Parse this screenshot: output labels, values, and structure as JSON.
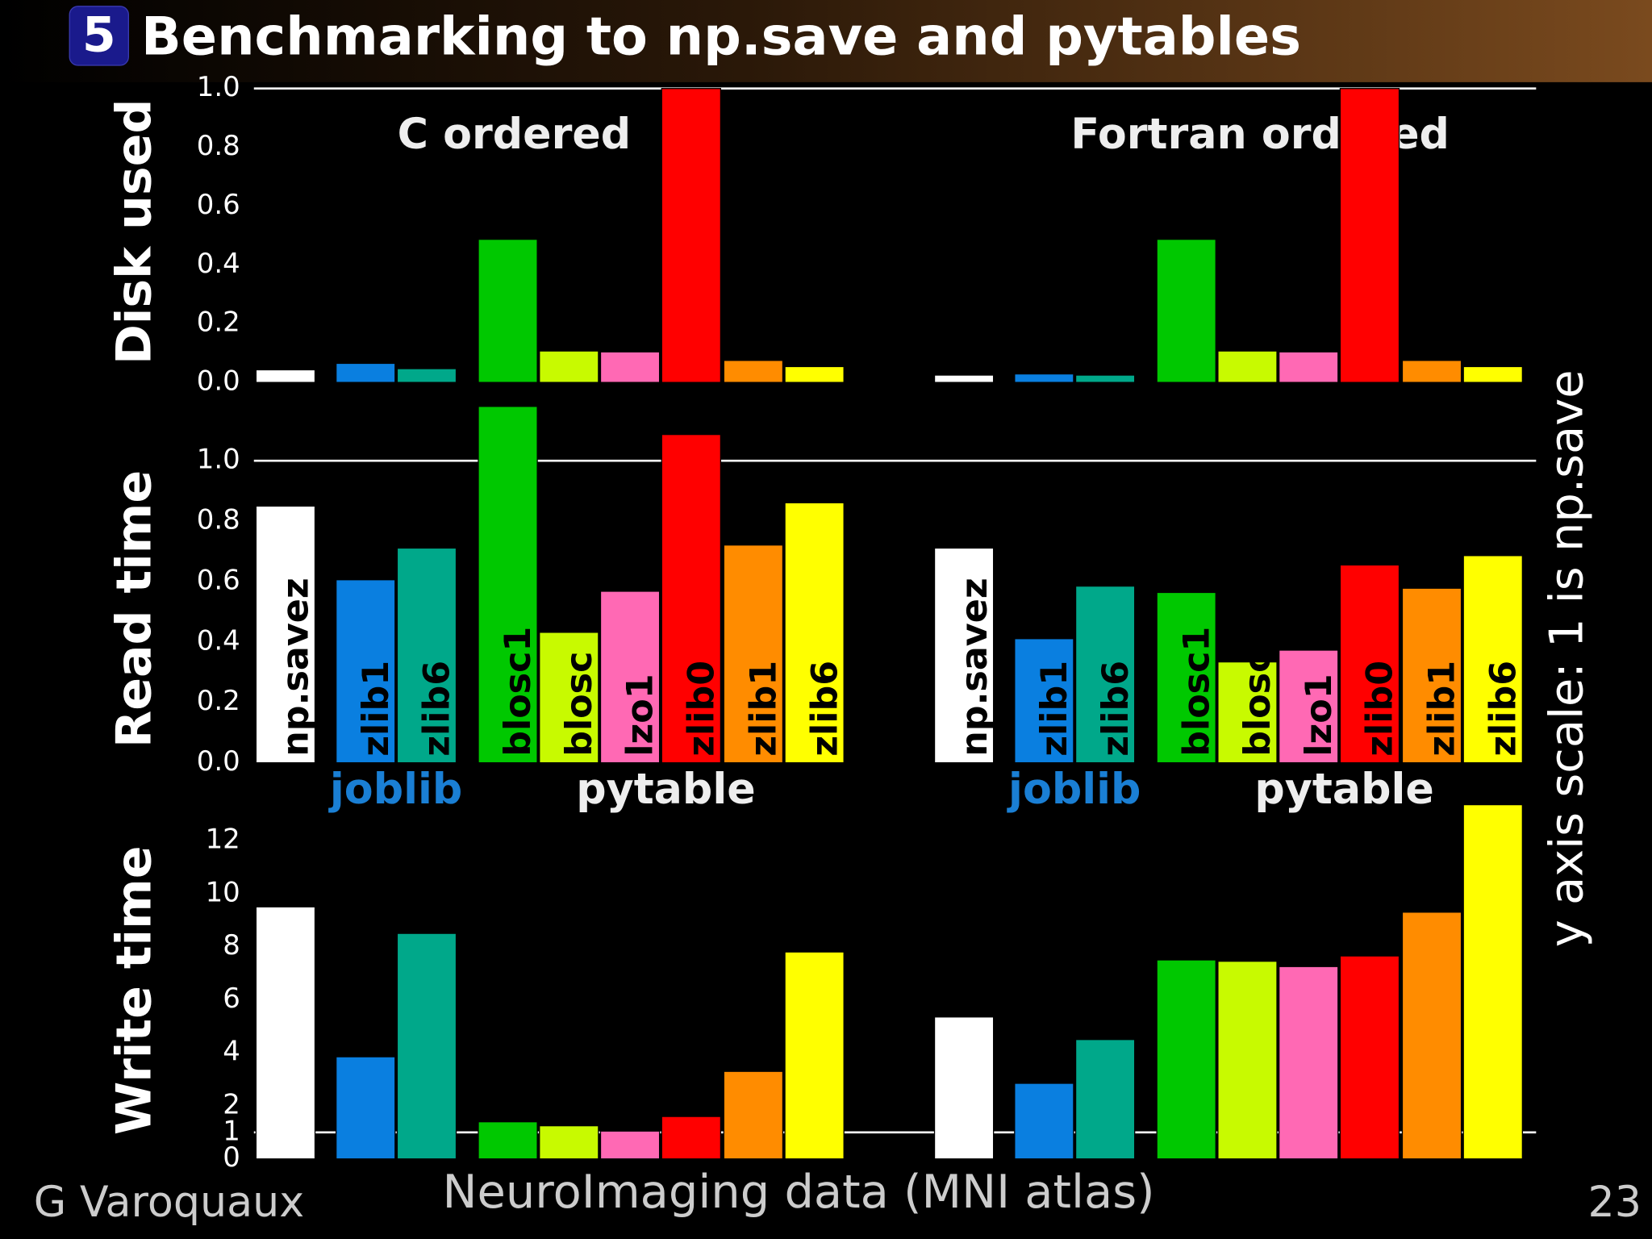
{
  "header": {
    "number": "5",
    "title": "Benchmarking to np.save and pytables"
  },
  "footer": {
    "author": "G Varoquaux",
    "subtitle": "NeuroImaging data (MNI atlas)",
    "page": "23"
  },
  "y_note": "y axis scale: 1 is np.save",
  "colors": [
    "#ffffff",
    "#0a7fe0",
    "#00a88a",
    "#00c800",
    "#c8fa00",
    "#ff69b4",
    "#ff0000",
    "#ff8c00",
    "#ffff00"
  ],
  "chart_data": [
    {
      "type": "bar",
      "y_label": "Disk used",
      "ylim": [
        0,
        1
      ],
      "yticks": [
        {
          "value": 0,
          "label": "0.0"
        },
        0.2,
        0.4,
        0.6,
        0.8,
        {
          "value": 1,
          "label": "1.0"
        }
      ],
      "hline": 1,
      "series": [
        {
          "name": "C ordered",
          "values": [
            0.043,
            0.065,
            0.047,
            0.487,
            0.107,
            0.104,
            1.0,
            0.075,
            0.054
          ]
        },
        {
          "name": "Fortran ordered",
          "values": [
            0.025,
            0.029,
            0.025,
            0.487,
            0.107,
            0.104,
            1.0,
            0.075,
            0.054
          ]
        }
      ]
    },
    {
      "type": "bar",
      "y_label": "Read time",
      "ylim": [
        0,
        1.2
      ],
      "yticks": [
        {
          "value": 0,
          "label": "0.0"
        },
        0.2,
        0.4,
        0.6,
        0.8,
        {
          "value": 1,
          "label": "1.0"
        }
      ],
      "hline": 1,
      "categories": [
        "np.savez",
        "zlib1",
        "zlib6",
        "blosc1",
        "blosc",
        "lzo1",
        "zlib0",
        "zlib1",
        "zlib6"
      ],
      "group_labels": [
        "joblib",
        "pytable"
      ],
      "series": [
        {
          "values": [
            0.85,
            0.606,
            0.711,
            1.18,
            0.432,
            0.568,
            1.087,
            0.721,
            0.861
          ]
        },
        {
          "values": [
            0.711,
            0.411,
            0.585,
            0.564,
            0.334,
            0.373,
            0.655,
            0.578,
            0.686
          ]
        }
      ]
    },
    {
      "type": "bar",
      "y_label": "Write time",
      "ylim": [
        0,
        13.5
      ],
      "yticks": [
        0,
        1,
        2,
        4,
        6,
        8,
        10,
        12
      ],
      "hline": 1,
      "series": [
        {
          "values": [
            9.5,
            3.85,
            8.5,
            1.4,
            1.25,
            1.05,
            1.6,
            3.3,
            7.8
          ]
        },
        {
          "values": [
            5.35,
            2.85,
            4.5,
            7.5,
            7.45,
            7.25,
            7.65,
            9.3,
            13.35
          ]
        }
      ]
    }
  ]
}
